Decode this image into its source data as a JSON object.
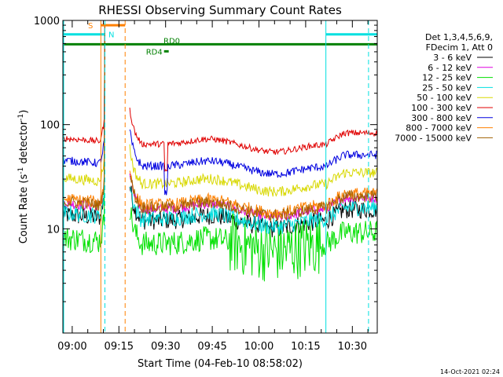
{
  "chart_data": {
    "type": "line",
    "title": "RHESSI Observing Summary Count Rates",
    "xlabel": "Start Time (04-Feb-10 08:58:02)",
    "ylabel_main": "Count Rate (s",
    "ylabel_sup1": "-1",
    "ylabel_mid": " detector",
    "ylabel_sup2": "-1",
    "ylabel_end": ")",
    "yscale": "log",
    "ylim": [
      1,
      1000
    ],
    "xlim_minutes": [
      -3,
      98
    ],
    "x_ticks": [
      {
        "label": "09:00",
        "min": 0
      },
      {
        "label": "09:15",
        "min": 15
      },
      {
        "label": "09:30",
        "min": 30
      },
      {
        "label": "09:45",
        "min": 45
      },
      {
        "label": "10:00",
        "min": 60
      },
      {
        "label": "10:15",
        "min": 75
      },
      {
        "label": "10:30",
        "min": 90
      }
    ],
    "y_ticks": [
      {
        "label": "10",
        "value": 10
      },
      {
        "label": "100",
        "value": 100
      },
      {
        "label": "1000",
        "value": 1000
      }
    ],
    "legend_header": [
      "Det 1,3,4,5,6,9,",
      "FDecim 1, Att 0"
    ],
    "series": [
      {
        "name": "3 - 6 keV",
        "color": "#000000",
        "base": 12,
        "noise": 0.09
      },
      {
        "name": "6 - 12 keV",
        "color": "#e000e0",
        "base": 15.5,
        "noise": 0.05
      },
      {
        "name": "12 - 25 keV",
        "color": "#00e000",
        "base": 7.2,
        "noise": 0.12
      },
      {
        "name": "25 - 50 keV",
        "color": "#00e0e0",
        "base": 12.5,
        "noise": 0.08
      },
      {
        "name": "50 - 100 keV",
        "color": "#d8d800",
        "base": 27,
        "noise": 0.05
      },
      {
        "name": "100 - 300 keV",
        "color": "#e00000",
        "base": 65,
        "noise": 0.03
      },
      {
        "name": "300 - 800 keV",
        "color": "#0000e0",
        "base": 40,
        "noise": 0.04
      },
      {
        "name": "800 - 7000 keV",
        "color": "#ff8000",
        "base": 17,
        "noise": 0.06
      },
      {
        "name": "7000 - 15000 keV",
        "color": "#a06000",
        "base": 16,
        "noise": 0.06
      }
    ],
    "data_gaps_minutes": [
      [
        10.5,
        18.5
      ]
    ],
    "markers": [
      {
        "label": "S",
        "color": "#ff8000",
        "x_start": 9.2,
        "x_end": 17,
        "y": 900
      },
      {
        "label": "N",
        "color": "#00e0e0",
        "x_start": -3,
        "x_end": 10.5,
        "y": 735
      },
      {
        "label": "N",
        "color": "#00e0e0",
        "x_start": 81.5,
        "x_end": 98,
        "y": 735
      },
      {
        "label": "RD0",
        "color": "#008000",
        "x_start": -3,
        "x_end": 98,
        "y": 590
      },
      {
        "label": "RD4",
        "color": "#008000",
        "x_start": 29.5,
        "x_end": 31,
        "y": 505
      }
    ],
    "vertical_lines": [
      {
        "min": -3,
        "color": "#00e0e0",
        "style": "solid"
      },
      {
        "min": 9.2,
        "color": "#ff8000",
        "style": "solid"
      },
      {
        "min": 10.5,
        "color": "#00e0e0",
        "style": "dashed"
      },
      {
        "min": 17,
        "color": "#ff8000",
        "style": "dashed"
      },
      {
        "min": 81.5,
        "color": "#00e0e0",
        "style": "solid"
      },
      {
        "min": 95.2,
        "color": "#00e0e0",
        "style": "dashed"
      }
    ]
  },
  "footer": {
    "timestamp": "14-Oct-2021 02:24"
  }
}
